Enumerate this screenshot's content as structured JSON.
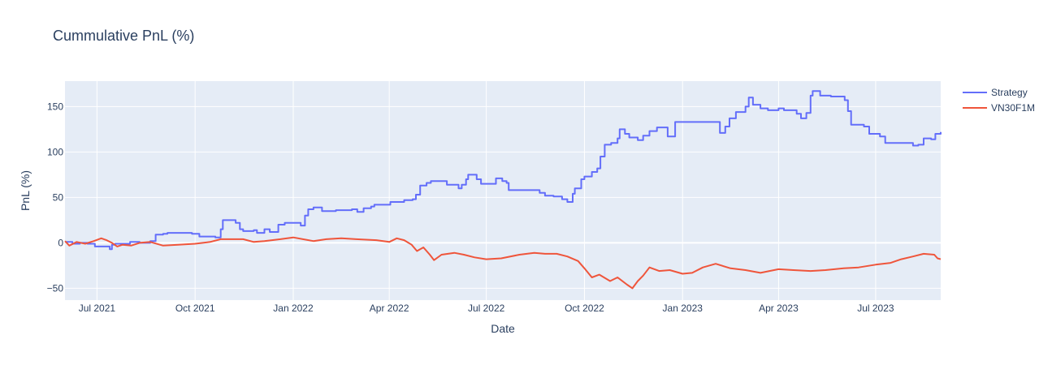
{
  "chart_data": {
    "type": "line",
    "title": "Cummulative PnL (%)",
    "xlabel": "Date",
    "ylabel": "PnL (%)",
    "xlim": [
      "2021-06-01",
      "2023-08-31"
    ],
    "ylim": [
      -63,
      178
    ],
    "x_ticks": [
      {
        "date": "2021-07-01",
        "label": "Jul 2021"
      },
      {
        "date": "2021-10-01",
        "label": "Oct 2021"
      },
      {
        "date": "2022-01-01",
        "label": "Jan 2022"
      },
      {
        "date": "2022-04-01",
        "label": "Apr 2022"
      },
      {
        "date": "2022-07-01",
        "label": "Jul 2022"
      },
      {
        "date": "2022-10-01",
        "label": "Oct 2022"
      },
      {
        "date": "2023-01-01",
        "label": "Jan 2023"
      },
      {
        "date": "2023-04-01",
        "label": "Apr 2023"
      },
      {
        "date": "2023-07-01",
        "label": "Jul 2023"
      }
    ],
    "y_ticks": [
      {
        "value": 150,
        "label": "150"
      },
      {
        "value": 100,
        "label": "100"
      },
      {
        "value": 50,
        "label": "50"
      },
      {
        "value": 0,
        "label": "0"
      },
      {
        "value": -50,
        "label": "−50"
      }
    ],
    "grid": true,
    "legend_position": "top-right-outside",
    "colors": {
      "plot_bg": "#E5ECF6",
      "grid": "#ffffff",
      "text": "#2a3f5f"
    },
    "series": [
      {
        "name": "Strategy",
        "color": "#636EFA",
        "step": true,
        "points": [
          [
            "2021-06-01",
            1
          ],
          [
            "2021-06-08",
            -1
          ],
          [
            "2021-06-15",
            0
          ],
          [
            "2021-06-22",
            -1
          ],
          [
            "2021-06-29",
            -4
          ],
          [
            "2021-07-10",
            -4
          ],
          [
            "2021-07-13",
            -7
          ],
          [
            "2021-07-15",
            -2
          ],
          [
            "2021-07-18",
            -1
          ],
          [
            "2021-08-01",
            1
          ],
          [
            "2021-08-10",
            0
          ],
          [
            "2021-08-20",
            2
          ],
          [
            "2021-08-25",
            9
          ],
          [
            "2021-09-01",
            10
          ],
          [
            "2021-09-05",
            11
          ],
          [
            "2021-09-25",
            11
          ],
          [
            "2021-09-28",
            10
          ],
          [
            "2021-10-01",
            10
          ],
          [
            "2021-10-05",
            7
          ],
          [
            "2021-10-20",
            6
          ],
          [
            "2021-10-25",
            15
          ],
          [
            "2021-10-27",
            25
          ],
          [
            "2021-11-08",
            22
          ],
          [
            "2021-11-12",
            15
          ],
          [
            "2021-11-15",
            13
          ],
          [
            "2021-11-25",
            14
          ],
          [
            "2021-11-28",
            11
          ],
          [
            "2021-12-05",
            15
          ],
          [
            "2021-12-10",
            12
          ],
          [
            "2021-12-18",
            20
          ],
          [
            "2021-12-24",
            22
          ],
          [
            "2022-01-04",
            22
          ],
          [
            "2022-01-08",
            19
          ],
          [
            "2022-01-12",
            30
          ],
          [
            "2022-01-15",
            37
          ],
          [
            "2022-01-20",
            39
          ],
          [
            "2022-01-28",
            35
          ],
          [
            "2022-02-10",
            36
          ],
          [
            "2022-02-25",
            37
          ],
          [
            "2022-03-02",
            34
          ],
          [
            "2022-03-08",
            38
          ],
          [
            "2022-03-15",
            40
          ],
          [
            "2022-03-18",
            42
          ],
          [
            "2022-03-26",
            42
          ],
          [
            "2022-04-02",
            45
          ],
          [
            "2022-04-15",
            47
          ],
          [
            "2022-04-23",
            48
          ],
          [
            "2022-04-26",
            53
          ],
          [
            "2022-04-30",
            63
          ],
          [
            "2022-05-06",
            66
          ],
          [
            "2022-05-10",
            68
          ],
          [
            "2022-05-20",
            68
          ],
          [
            "2022-05-25",
            64
          ],
          [
            "2022-06-05",
            60
          ],
          [
            "2022-06-08",
            64
          ],
          [
            "2022-06-12",
            70
          ],
          [
            "2022-06-14",
            75
          ],
          [
            "2022-06-22",
            70
          ],
          [
            "2022-06-26",
            65
          ],
          [
            "2022-07-07",
            65
          ],
          [
            "2022-07-10",
            71
          ],
          [
            "2022-07-16",
            68
          ],
          [
            "2022-07-20",
            66
          ],
          [
            "2022-07-22",
            58
          ],
          [
            "2022-08-15",
            58
          ],
          [
            "2022-08-20",
            55
          ],
          [
            "2022-08-25",
            52
          ],
          [
            "2022-09-02",
            51
          ],
          [
            "2022-09-10",
            48
          ],
          [
            "2022-09-15",
            45
          ],
          [
            "2022-09-18",
            45
          ],
          [
            "2022-09-20",
            54
          ],
          [
            "2022-09-22",
            60
          ],
          [
            "2022-09-28",
            70
          ],
          [
            "2022-10-01",
            73
          ],
          [
            "2022-10-08",
            78
          ],
          [
            "2022-10-13",
            82
          ],
          [
            "2022-10-16",
            95
          ],
          [
            "2022-10-20",
            108
          ],
          [
            "2022-10-26",
            110
          ],
          [
            "2022-11-01",
            115
          ],
          [
            "2022-11-03",
            125
          ],
          [
            "2022-11-08",
            120
          ],
          [
            "2022-11-12",
            116
          ],
          [
            "2022-11-20",
            113
          ],
          [
            "2022-11-25",
            118
          ],
          [
            "2022-12-01",
            123
          ],
          [
            "2022-12-08",
            127
          ],
          [
            "2022-12-18",
            117
          ],
          [
            "2022-12-25",
            133
          ],
          [
            "2023-02-02",
            133
          ],
          [
            "2023-02-05",
            121
          ],
          [
            "2023-02-10",
            128
          ],
          [
            "2023-02-14",
            137
          ],
          [
            "2023-02-20",
            144
          ],
          [
            "2023-03-01",
            150
          ],
          [
            "2023-03-04",
            160
          ],
          [
            "2023-03-08",
            152
          ],
          [
            "2023-03-15",
            148
          ],
          [
            "2023-03-22",
            146
          ],
          [
            "2023-04-01",
            148
          ],
          [
            "2023-04-06",
            146
          ],
          [
            "2023-04-18",
            142
          ],
          [
            "2023-04-22",
            137
          ],
          [
            "2023-04-27",
            143
          ],
          [
            "2023-05-01",
            162
          ],
          [
            "2023-05-03",
            167
          ],
          [
            "2023-05-10",
            162
          ],
          [
            "2023-05-20",
            161
          ],
          [
            "2023-06-02",
            157
          ],
          [
            "2023-06-05",
            145
          ],
          [
            "2023-06-08",
            130
          ],
          [
            "2023-06-20",
            128
          ],
          [
            "2023-06-25",
            120
          ],
          [
            "2023-07-05",
            117
          ],
          [
            "2023-07-10",
            110
          ],
          [
            "2023-07-25",
            110
          ],
          [
            "2023-08-05",
            107
          ],
          [
            "2023-08-10",
            108
          ],
          [
            "2023-08-15",
            115
          ],
          [
            "2023-08-22",
            114
          ],
          [
            "2023-08-26",
            120
          ],
          [
            "2023-08-31",
            122
          ]
        ]
      },
      {
        "name": "VN30F1M",
        "color": "#EF553B",
        "step": false,
        "points": [
          [
            "2021-06-01",
            2
          ],
          [
            "2021-06-05",
            -3
          ],
          [
            "2021-06-12",
            1
          ],
          [
            "2021-06-20",
            -1
          ],
          [
            "2021-06-28",
            2
          ],
          [
            "2021-07-05",
            5
          ],
          [
            "2021-07-10",
            3
          ],
          [
            "2021-07-15",
            0
          ],
          [
            "2021-07-20",
            -4
          ],
          [
            "2021-07-25",
            -2
          ],
          [
            "2021-08-02",
            -3
          ],
          [
            "2021-08-10",
            0
          ],
          [
            "2021-08-20",
            1
          ],
          [
            "2021-09-01",
            -3
          ],
          [
            "2021-09-15",
            -2
          ],
          [
            "2021-10-01",
            -1
          ],
          [
            "2021-10-15",
            1
          ],
          [
            "2021-10-25",
            4
          ],
          [
            "2021-11-05",
            4
          ],
          [
            "2021-11-15",
            4
          ],
          [
            "2021-11-25",
            1
          ],
          [
            "2021-12-05",
            2
          ],
          [
            "2021-12-20",
            4
          ],
          [
            "2022-01-01",
            6
          ],
          [
            "2022-01-10",
            4
          ],
          [
            "2022-01-20",
            2
          ],
          [
            "2022-02-01",
            4
          ],
          [
            "2022-02-15",
            5
          ],
          [
            "2022-03-01",
            4
          ],
          [
            "2022-03-20",
            3
          ],
          [
            "2022-04-01",
            1
          ],
          [
            "2022-04-08",
            5
          ],
          [
            "2022-04-15",
            3
          ],
          [
            "2022-04-22",
            -2
          ],
          [
            "2022-04-27",
            -9
          ],
          [
            "2022-05-03",
            -5
          ],
          [
            "2022-05-09",
            -13
          ],
          [
            "2022-05-13",
            -19
          ],
          [
            "2022-05-20",
            -13
          ],
          [
            "2022-06-01",
            -11
          ],
          [
            "2022-06-10",
            -13
          ],
          [
            "2022-06-20",
            -16
          ],
          [
            "2022-07-01",
            -18
          ],
          [
            "2022-07-15",
            -17
          ],
          [
            "2022-08-01",
            -13
          ],
          [
            "2022-08-15",
            -11
          ],
          [
            "2022-08-25",
            -12
          ],
          [
            "2022-09-05",
            -12
          ],
          [
            "2022-09-15",
            -15
          ],
          [
            "2022-09-25",
            -20
          ],
          [
            "2022-10-01",
            -28
          ],
          [
            "2022-10-08",
            -38
          ],
          [
            "2022-10-15",
            -35
          ],
          [
            "2022-10-25",
            -42
          ],
          [
            "2022-11-01",
            -38
          ],
          [
            "2022-11-10",
            -46
          ],
          [
            "2022-11-15",
            -50
          ],
          [
            "2022-11-20",
            -42
          ],
          [
            "2022-11-25",
            -36
          ],
          [
            "2022-12-01",
            -27
          ],
          [
            "2022-12-10",
            -31
          ],
          [
            "2022-12-20",
            -30
          ],
          [
            "2023-01-01",
            -34
          ],
          [
            "2023-01-10",
            -33
          ],
          [
            "2023-01-20",
            -27
          ],
          [
            "2023-02-01",
            -23
          ],
          [
            "2023-02-15",
            -28
          ],
          [
            "2023-03-01",
            -30
          ],
          [
            "2023-03-15",
            -33
          ],
          [
            "2023-04-01",
            -29
          ],
          [
            "2023-04-15",
            -30
          ],
          [
            "2023-05-01",
            -31
          ],
          [
            "2023-05-15",
            -30
          ],
          [
            "2023-06-01",
            -28
          ],
          [
            "2023-06-15",
            -27
          ],
          [
            "2023-07-01",
            -24
          ],
          [
            "2023-07-15",
            -22
          ],
          [
            "2023-07-25",
            -18
          ],
          [
            "2023-08-05",
            -15
          ],
          [
            "2023-08-15",
            -12
          ],
          [
            "2023-08-25",
            -13
          ],
          [
            "2023-08-28",
            -17
          ],
          [
            "2023-08-31",
            -18
          ]
        ]
      }
    ]
  }
}
